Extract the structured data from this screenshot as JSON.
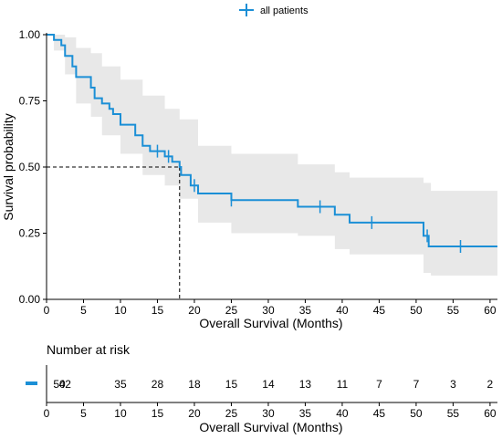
{
  "chart_data": [
    {
      "type": "line",
      "subtype": "kaplan-meier",
      "title": "",
      "xlabel": "Overall Survival (Months)",
      "ylabel": "Survival probability",
      "xlim": [
        0,
        61
      ],
      "ylim": [
        0,
        1
      ],
      "xticks": [
        "0",
        "5",
        "10",
        "15",
        "20",
        "25",
        "30",
        "35",
        "40",
        "45",
        "50",
        "55",
        "60"
      ],
      "yticks": [
        "0.00",
        "0.25",
        "0.50",
        "0.75",
        "1.00"
      ],
      "legend": {
        "position": "top-center",
        "entries": [
          "all patients"
        ]
      },
      "series": [
        {
          "name": "all patients",
          "color": "#1b8fd6",
          "steps": [
            [
              0,
              1.0
            ],
            [
              1,
              0.98
            ],
            [
              2,
              0.96
            ],
            [
              2.5,
              0.92
            ],
            [
              3.5,
              0.88
            ],
            [
              4,
              0.84
            ],
            [
              6,
              0.8
            ],
            [
              6.5,
              0.76
            ],
            [
              7.5,
              0.74
            ],
            [
              8.5,
              0.72
            ],
            [
              9,
              0.7
            ],
            [
              10,
              0.66
            ],
            [
              12,
              0.62
            ],
            [
              13,
              0.58
            ],
            [
              14,
              0.56
            ],
            [
              16,
              0.54
            ],
            [
              17,
              0.52
            ],
            [
              18,
              0.5
            ],
            [
              18.2,
              0.47
            ],
            [
              19.5,
              0.43
            ],
            [
              20.5,
              0.4
            ],
            [
              23.5,
              0.4
            ],
            [
              25,
              0.375
            ],
            [
              34,
              0.35
            ],
            [
              39,
              0.32
            ],
            [
              41,
              0.29
            ],
            [
              51,
              0.24
            ],
            [
              51.7,
              0.2
            ],
            [
              61,
              0.2
            ]
          ],
          "ci": [
            [
              0,
              1.0,
              1.0
            ],
            [
              1,
              0.94,
              1.0
            ],
            [
              2.5,
              0.85,
              0.99
            ],
            [
              4,
              0.74,
              0.95
            ],
            [
              6,
              0.69,
              0.93
            ],
            [
              7.5,
              0.62,
              0.88
            ],
            [
              10,
              0.55,
              0.83
            ],
            [
              13,
              0.47,
              0.77
            ],
            [
              16,
              0.43,
              0.72
            ],
            [
              18,
              0.38,
              0.68
            ],
            [
              20.5,
              0.29,
              0.58
            ],
            [
              25,
              0.25,
              0.55
            ],
            [
              34,
              0.24,
              0.51
            ],
            [
              39,
              0.19,
              0.48
            ],
            [
              41,
              0.17,
              0.46
            ],
            [
              51,
              0.1,
              0.44
            ],
            [
              52,
              0.09,
              0.41
            ],
            [
              61,
              0.09,
              0.41
            ]
          ],
          "censored": [
            [
              15,
              0.56
            ],
            [
              16.5,
              0.54
            ],
            [
              20,
              0.43
            ],
            [
              25,
              0.375
            ],
            [
              37,
              0.35
            ],
            [
              44,
              0.29
            ],
            [
              51.5,
              0.24
            ],
            [
              56,
              0.2
            ]
          ]
        }
      ],
      "annotations": [
        {
          "type": "median-reference",
          "x": 18,
          "y": 0.5,
          "style": "dashed"
        }
      ]
    },
    {
      "type": "table",
      "title": "Number at risk",
      "xlabel": "Overall Survival (Months)",
      "xlim": [
        0,
        61
      ],
      "xticks": [
        "0",
        "5",
        "10",
        "15",
        "20",
        "25",
        "30",
        "35",
        "40",
        "45",
        "50",
        "55",
        "60"
      ],
      "rows": [
        {
          "color": "#1b8fd6",
          "times": [
            0,
            2.5,
            10,
            15,
            20,
            25,
            30,
            35,
            40,
            45,
            50,
            55,
            60
          ],
          "counts": [
            "50",
            "42",
            "35",
            "28",
            "18",
            "15",
            "14",
            "13",
            "11",
            "7",
            "7",
            "3",
            "2"
          ]
        }
      ]
    }
  ]
}
